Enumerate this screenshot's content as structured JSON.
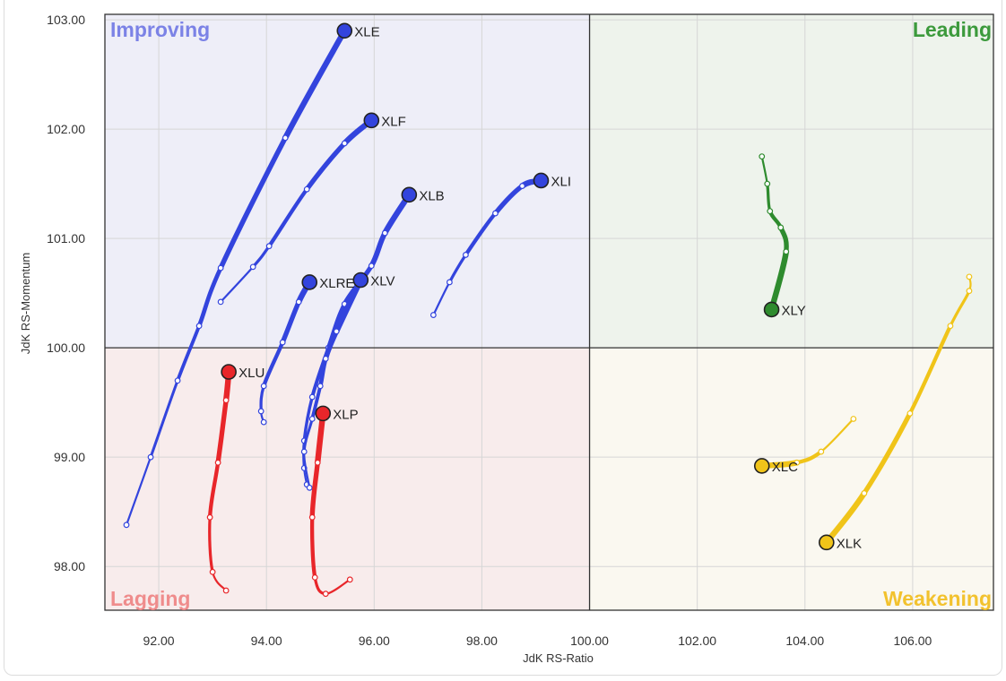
{
  "chart_data": {
    "type": "scatter",
    "xlabel": "JdK RS-Ratio",
    "ylabel": "JdK RS-Momentum",
    "xlim": [
      91.0,
      107.5
    ],
    "ylim": [
      97.6,
      103.05
    ],
    "center": [
      100.0,
      100.0
    ],
    "x_ticks": [
      "92.00",
      "94.00",
      "96.00",
      "98.00",
      "100.00",
      "102.00",
      "104.00",
      "106.00"
    ],
    "y_ticks": [
      "98.00",
      "99.00",
      "100.00",
      "101.00",
      "102.00",
      "103.00"
    ],
    "grid": true,
    "quadrants": [
      {
        "name": "Improving",
        "position": "top-left",
        "color": "#7b82e6",
        "fill": "#eeeef8"
      },
      {
        "name": "Leading",
        "position": "top-right",
        "color": "#3c9a3c",
        "fill": "#eef3ec"
      },
      {
        "name": "Lagging",
        "position": "bottom-left",
        "color": "#ef8c8c",
        "fill": "#f8ecec"
      },
      {
        "name": "Weakening",
        "position": "bottom-right",
        "color": "#f2c22e",
        "fill": "#faf8f0"
      }
    ],
    "series": [
      {
        "name": "XLE",
        "color": "#3344dd",
        "points": [
          [
            91.4,
            98.38
          ],
          [
            91.85,
            99.0
          ],
          [
            92.35,
            99.7
          ],
          [
            92.75,
            100.2
          ],
          [
            93.15,
            100.73
          ],
          [
            94.35,
            101.92
          ],
          [
            95.45,
            102.9
          ]
        ]
      },
      {
        "name": "XLF",
        "color": "#3344dd",
        "points": [
          [
            93.15,
            100.42
          ],
          [
            93.75,
            100.74
          ],
          [
            94.05,
            100.93
          ],
          [
            94.75,
            101.45
          ],
          [
            95.45,
            101.87
          ],
          [
            95.95,
            102.08
          ]
        ]
      },
      {
        "name": "XLB",
        "color": "#3344dd",
        "points": [
          [
            94.75,
            98.75
          ],
          [
            94.7,
            98.9
          ],
          [
            94.7,
            99.15
          ],
          [
            94.85,
            99.55
          ],
          [
            95.15,
            100.0
          ],
          [
            95.45,
            100.4
          ],
          [
            95.95,
            100.75
          ],
          [
            96.2,
            101.05
          ],
          [
            96.65,
            101.4
          ]
        ]
      },
      {
        "name": "XLI",
        "color": "#3344dd",
        "points": [
          [
            97.1,
            100.3
          ],
          [
            97.4,
            100.6
          ],
          [
            97.7,
            100.85
          ],
          [
            98.25,
            101.23
          ],
          [
            98.75,
            101.48
          ],
          [
            99.1,
            101.53
          ]
        ]
      },
      {
        "name": "XLRE",
        "color": "#3344dd",
        "points": [
          [
            93.95,
            99.32
          ],
          [
            93.9,
            99.42
          ],
          [
            93.95,
            99.65
          ],
          [
            94.3,
            100.05
          ],
          [
            94.6,
            100.42
          ],
          [
            94.8,
            100.6
          ]
        ]
      },
      {
        "name": "XLV",
        "color": "#3344dd",
        "points": [
          [
            94.8,
            98.72
          ],
          [
            94.7,
            99.05
          ],
          [
            94.85,
            99.35
          ],
          [
            95.0,
            99.65
          ],
          [
            95.1,
            99.9
          ],
          [
            95.3,
            100.15
          ],
          [
            95.75,
            100.62
          ]
        ]
      },
      {
        "name": "XLY",
        "color": "#2e8b2e",
        "points": [
          [
            103.2,
            101.75
          ],
          [
            103.3,
            101.5
          ],
          [
            103.35,
            101.25
          ],
          [
            103.55,
            101.1
          ],
          [
            103.65,
            100.88
          ],
          [
            103.38,
            100.35
          ]
        ]
      },
      {
        "name": "XLU",
        "color": "#e8262a",
        "points": [
          [
            93.25,
            97.78
          ],
          [
            93.0,
            97.95
          ],
          [
            92.95,
            98.45
          ],
          [
            93.1,
            98.95
          ],
          [
            93.25,
            99.52
          ],
          [
            93.3,
            99.78
          ]
        ]
      },
      {
        "name": "XLP",
        "color": "#e8262a",
        "points": [
          [
            95.55,
            97.88
          ],
          [
            95.1,
            97.75
          ],
          [
            94.9,
            97.9
          ],
          [
            94.85,
            98.45
          ],
          [
            94.95,
            98.95
          ],
          [
            95.05,
            99.4
          ]
        ]
      },
      {
        "name": "XLC",
        "color": "#f0c419",
        "points": [
          [
            104.9,
            99.35
          ],
          [
            104.3,
            99.05
          ],
          [
            103.85,
            98.95
          ],
          [
            103.2,
            98.92
          ]
        ]
      },
      {
        "name": "XLK",
        "color": "#f0c419",
        "points": [
          [
            107.05,
            100.65
          ],
          [
            107.05,
            100.52
          ],
          [
            106.7,
            100.2
          ],
          [
            105.95,
            99.4
          ],
          [
            105.1,
            98.67
          ],
          [
            104.4,
            98.22
          ]
        ]
      }
    ]
  }
}
